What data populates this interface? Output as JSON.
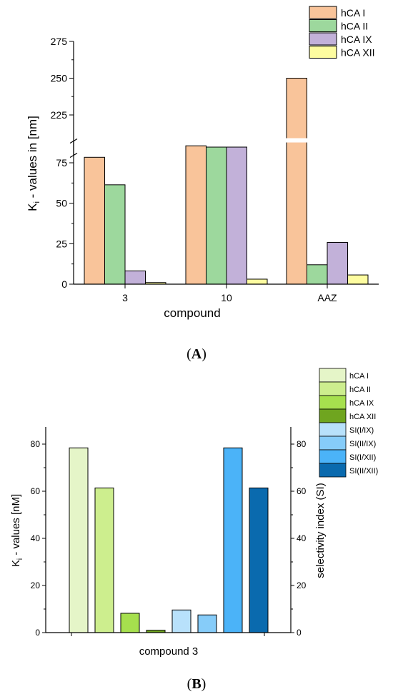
{
  "chart_data": [
    {
      "type": "bar",
      "panel_label": "A",
      "title": "",
      "xlabel": "compound",
      "ylabel_prefix": "K",
      "ylabel_sub": "i",
      "ylabel_suffix": " - values in [nm]",
      "categories": [
        "3",
        "10",
        "AAZ"
      ],
      "series": [
        {
          "name": "hCA I",
          "color": "#f9c49a",
          "values": [
            78.4,
            85.5,
            250.0
          ]
        },
        {
          "name": "hCA II",
          "color": "#9dd89d",
          "values": [
            61.4,
            84.7,
            12.0
          ]
        },
        {
          "name": "hCA IX",
          "color": "#c2b1d9",
          "values": [
            8.2,
            84.7,
            25.8
          ]
        },
        {
          "name": "hCA XII",
          "color": "#fdfca0",
          "values": [
            1.0,
            3.1,
            5.7
          ]
        }
      ],
      "axis_break": {
        "lower": [
          0,
          88
        ],
        "upper": [
          200,
          275
        ]
      },
      "yticks_lower": [
        0,
        25,
        50,
        75
      ],
      "yticks_upper": [
        225,
        250,
        275
      ],
      "legend_position": "top-right"
    },
    {
      "type": "bar",
      "panel_label": "B",
      "title": "",
      "xlabel": "compound 3",
      "ylabel_prefix": "K",
      "ylabel_sub": "i",
      "ylabel_suffix": " - values [nM]",
      "y2label": "selectivity index (SI)",
      "ylim": [
        0,
        90
      ],
      "yticks": [
        0,
        20,
        40,
        60,
        80
      ],
      "series": [
        {
          "name": "hCA I",
          "color": "#e5f5c8",
          "value": 78.4,
          "axis": "left"
        },
        {
          "name": "hCA II",
          "color": "#cdee8e",
          "value": 61.4,
          "axis": "left"
        },
        {
          "name": "hCA IX",
          "color": "#a6e04e",
          "value": 8.2,
          "axis": "left"
        },
        {
          "name": "hCA XII",
          "color": "#6fa51f",
          "value": 1.0,
          "axis": "left"
        },
        {
          "name": "SI(I/IX)",
          "color": "#b8e1fb",
          "value": 9.6,
          "axis": "right"
        },
        {
          "name": "SI(II/IX)",
          "color": "#86ccf9",
          "value": 7.5,
          "axis": "right"
        },
        {
          "name": "SI(I/XII)",
          "color": "#4bb3f8",
          "value": 78.4,
          "axis": "right"
        },
        {
          "name": "SI(II/XII)",
          "color": "#0a6aae",
          "value": 61.4,
          "axis": "right"
        }
      ],
      "legend_position": "top-right"
    }
  ]
}
